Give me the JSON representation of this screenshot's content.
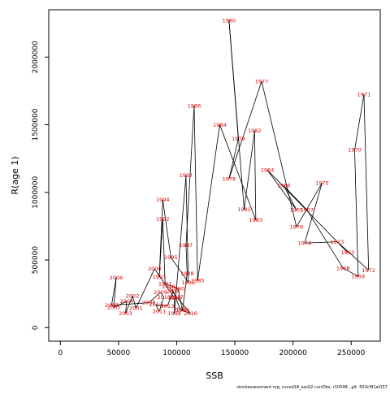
{
  "chart_data": {
    "type": "scatter",
    "connected": true,
    "xlabel": "SSB",
    "ylabel": "R(age 1)",
    "xlim": [
      -10000,
      275000
    ],
    "ylim": [
      -100000,
      2350000
    ],
    "xticks": [
      0,
      50000,
      100000,
      150000,
      200000,
      250000
    ],
    "yticks": [
      0,
      500000,
      1000000,
      1500000,
      2000000
    ],
    "grid": false,
    "label_color": "#e00000",
    "line_color": "#000000",
    "points": [
      {
        "year": "1963",
        "x": 247000,
        "y": 555000
      },
      {
        "year": "1964",
        "x": 178000,
        "y": 1165000
      },
      {
        "year": "1965",
        "x": 203000,
        "y": 870000
      },
      {
        "year": "1966",
        "x": 192000,
        "y": 1050000
      },
      {
        "year": "1967",
        "x": 212000,
        "y": 870000
      },
      {
        "year": "1968",
        "x": 243000,
        "y": 440000
      },
      {
        "year": "1969",
        "x": 256000,
        "y": 380000
      },
      {
        "year": "1970",
        "x": 253000,
        "y": 1315000
      },
      {
        "year": "1971",
        "x": 261000,
        "y": 1725000
      },
      {
        "year": "1972",
        "x": 265000,
        "y": 425000
      },
      {
        "year": "1973",
        "x": 238000,
        "y": 635000
      },
      {
        "year": "1974",
        "x": 210000,
        "y": 625000
      },
      {
        "year": "1975",
        "x": 225000,
        "y": 1070000
      },
      {
        "year": "1976",
        "x": 203000,
        "y": 745000
      },
      {
        "year": "1977",
        "x": 173000,
        "y": 1820000
      },
      {
        "year": "1978",
        "x": 145000,
        "y": 1100000
      },
      {
        "year": "1979",
        "x": 153000,
        "y": 1395000
      },
      {
        "year": "1980",
        "x": 145000,
        "y": 2270000
      },
      {
        "year": "1981",
        "x": 158000,
        "y": 875000
      },
      {
        "year": "1982",
        "x": 167000,
        "y": 1455000
      },
      {
        "year": "1983",
        "x": 168000,
        "y": 795000
      },
      {
        "year": "1984",
        "x": 137000,
        "y": 1500000
      },
      {
        "year": "1985",
        "x": 118000,
        "y": 350000
      },
      {
        "year": "1986",
        "x": 115000,
        "y": 1640000
      },
      {
        "year": "1987",
        "x": 108000,
        "y": 610000
      },
      {
        "year": "1988",
        "x": 109000,
        "y": 400000
      },
      {
        "year": "1989",
        "x": 105000,
        "y": 130000
      },
      {
        "year": "1990",
        "x": 101000,
        "y": 290000
      },
      {
        "year": "1991",
        "x": 90000,
        "y": 325000
      },
      {
        "year": "1992",
        "x": 88000,
        "y": 805000
      },
      {
        "year": "1993",
        "x": 85000,
        "y": 375000
      },
      {
        "year": "1994",
        "x": 88000,
        "y": 945000
      },
      {
        "year": "1995",
        "x": 95000,
        "y": 520000
      },
      {
        "year": "1996",
        "x": 110000,
        "y": 335000
      },
      {
        "year": "1997",
        "x": 108000,
        "y": 1125000
      },
      {
        "year": "1998",
        "x": 98000,
        "y": 105000
      },
      {
        "year": "1999",
        "x": 98000,
        "y": 220000
      },
      {
        "year": "2000",
        "x": 81000,
        "y": 435000
      },
      {
        "year": "2001",
        "x": 65000,
        "y": 145000
      },
      {
        "year": "2002",
        "x": 62000,
        "y": 235000
      },
      {
        "year": "2003",
        "x": 56000,
        "y": 105000
      },
      {
        "year": "2004",
        "x": 57000,
        "y": 195000
      },
      {
        "year": "2005",
        "x": 46000,
        "y": 150000
      },
      {
        "year": "2006",
        "x": 48000,
        "y": 370000
      },
      {
        "year": "2007",
        "x": 44000,
        "y": 165000
      },
      {
        "year": "2008",
        "x": 76000,
        "y": 185000
      },
      {
        "year": "2009",
        "x": 86000,
        "y": 260000
      },
      {
        "year": "2010",
        "x": 89000,
        "y": 225000
      },
      {
        "year": "2011",
        "x": 85000,
        "y": 120000
      },
      {
        "year": "2012",
        "x": 82000,
        "y": 170000
      },
      {
        "year": "2013",
        "x": 92000,
        "y": 160000
      },
      {
        "year": "2014",
        "x": 97000,
        "y": 270000
      },
      {
        "year": "2015",
        "x": 103000,
        "y": 135000
      },
      {
        "year": "2016",
        "x": 112000,
        "y": 105000
      },
      {
        "year": "2017",
        "x": 100000,
        "y": 225000
      },
      {
        "year": "2018",
        "x": 93000,
        "y": 305000
      }
    ]
  },
  "footer": "stockassessment.org, nscod18_ass02 currObs, r10548 , git: 503cf91af157"
}
